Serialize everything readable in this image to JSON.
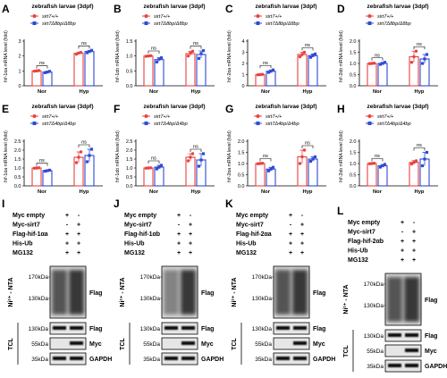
{
  "colors": {
    "red": "#e8423f",
    "blue": "#2f49d6",
    "black": "#000000"
  },
  "chart_data": [
    {
      "type": "bar",
      "panel": "A",
      "title": "zebrafish larvae (3dpf)",
      "ylabel": "hif-1αa mRNA level (fold)",
      "ylim": [
        0,
        3
      ],
      "yticks": [
        0,
        1,
        2,
        3
      ],
      "categories": [
        "Nor",
        "Hyp"
      ],
      "legend": [
        "sirt7+/+",
        "sirt7Δ8bp/Δ8bp"
      ],
      "series": [
        {
          "name": "sirt7+/+",
          "values": [
            1.0,
            2.18
          ],
          "errors": [
            0.04,
            0.06
          ],
          "points": [
            [
              0.98,
              1.0,
              1.02
            ],
            [
              2.12,
              2.2,
              2.24
            ]
          ]
        },
        {
          "name": "sirt7Δ8bp/Δ8bp",
          "values": [
            0.92,
            2.3
          ],
          "errors": [
            0.05,
            0.08
          ],
          "points": [
            [
              0.88,
              0.92,
              0.97
            ],
            [
              2.22,
              2.3,
              2.38
            ]
          ]
        }
      ],
      "annotations": [
        "ns",
        "ns"
      ]
    },
    {
      "type": "bar",
      "panel": "B",
      "title": "zebrafish larvae (3dpf)",
      "ylabel": "hif-1αb mRNA level (fold)",
      "ylim": [
        0,
        1.5
      ],
      "yticks": [
        0,
        0.5,
        1.0,
        1.5
      ],
      "categories": [
        "Nor",
        "Hyp"
      ],
      "legend": [
        "sirt7+/+",
        "sirt7Δ8bp/Δ8bp"
      ],
      "series": [
        {
          "name": "sirt7+/+",
          "values": [
            1.0,
            1.08
          ],
          "errors": [
            0.02,
            0.08
          ],
          "points": [
            [
              0.99,
              1.0,
              1.01
            ],
            [
              1.0,
              1.1,
              1.16
            ]
          ]
        },
        {
          "name": "sirt7Δ8bp/Δ8bp",
          "values": [
            0.88,
            1.05
          ],
          "errors": [
            0.06,
            0.12
          ],
          "points": [
            [
              0.8,
              0.9,
              0.94
            ],
            [
              0.92,
              1.08,
              1.18
            ]
          ]
        }
      ],
      "annotations": [
        "ns",
        "ns"
      ]
    },
    {
      "type": "bar",
      "panel": "C",
      "title": "zebrafish larvae (3dpf)",
      "ylabel": "hif-2αa mRNA level (fold)",
      "ylim": [
        0,
        4
      ],
      "yticks": [
        0,
        1,
        2,
        3,
        4
      ],
      "categories": [
        "Nor",
        "Hyp"
      ],
      "legend": [
        "sirt7+/+",
        "sirt7Δ8bp/Δ8bp"
      ],
      "series": [
        {
          "name": "sirt7+/+",
          "values": [
            1.0,
            2.8
          ],
          "errors": [
            0.03,
            0.2
          ],
          "points": [
            [
              0.98,
              1.0,
              1.02
            ],
            [
              2.6,
              2.8,
              3.0
            ]
          ]
        },
        {
          "name": "sirt7Δ8bp/Δ8bp",
          "values": [
            1.3,
            2.7
          ],
          "errors": [
            0.12,
            0.15
          ],
          "points": [
            [
              1.2,
              1.3,
              1.42
            ],
            [
              2.55,
              2.7,
              2.85
            ]
          ]
        }
      ],
      "annotations": [
        "ns",
        "ns"
      ]
    },
    {
      "type": "bar",
      "panel": "D",
      "title": "zebrafish larvae (3dpf)",
      "ylabel": "hif-2αb mRNA level (fold)",
      "ylim": [
        0,
        2.0
      ],
      "yticks": [
        0,
        0.5,
        1.0,
        1.5,
        2.0
      ],
      "categories": [
        "Nor",
        "Hyp"
      ],
      "legend": [
        "sirt7+/+",
        "sirt7Δ8bp/Δ8bp"
      ],
      "series": [
        {
          "name": "sirt7+/+",
          "values": [
            1.0,
            1.3
          ],
          "errors": [
            0.02,
            0.25
          ],
          "points": [
            [
              0.99,
              1.0,
              1.01
            ],
            [
              1.05,
              1.3,
              1.55
            ]
          ]
        },
        {
          "name": "sirt7Δ8bp/Δ8bp",
          "values": [
            1.0,
            1.2
          ],
          "errors": [
            0.05,
            0.2
          ],
          "points": [
            [
              0.96,
              1.0,
              1.05
            ],
            [
              1.0,
              1.2,
              1.4
            ]
          ]
        }
      ],
      "annotations": [
        "ns",
        "ns"
      ]
    },
    {
      "type": "bar",
      "panel": "E",
      "title": "zebrafish larvae (3dpf)",
      "ylabel": "hif-1αa mRNA level (fold)",
      "ylim": [
        0,
        2.5
      ],
      "yticks": [
        0,
        0.5,
        1.0,
        1.5,
        2.0,
        2.5
      ],
      "categories": [
        "Nor",
        "Hyp"
      ],
      "legend": [
        "sirt7+/+",
        "sirt7Δ4bp/Δ4bp"
      ],
      "series": [
        {
          "name": "sirt7+/+",
          "values": [
            1.0,
            1.6
          ],
          "errors": [
            0.02,
            0.3
          ],
          "points": [
            [
              0.99,
              1.0,
              1.01
            ],
            [
              1.3,
              1.6,
              1.9
            ]
          ]
        },
        {
          "name": "sirt7Δ4bp/Δ4bp",
          "values": [
            0.85,
            1.7
          ],
          "errors": [
            0.04,
            0.35
          ],
          "points": [
            [
              0.82,
              0.85,
              0.88
            ],
            [
              1.35,
              1.7,
              2.05
            ]
          ]
        }
      ],
      "annotations": [
        "ns",
        "ns"
      ]
    },
    {
      "type": "bar",
      "panel": "F",
      "title": "zebrafish larvae (3dpf)",
      "ylabel": "hif-1αb mRNA level (fold)",
      "ylim": [
        0,
        2.5
      ],
      "yticks": [
        0,
        0.5,
        1.0,
        1.5,
        2.0,
        2.5
      ],
      "categories": [
        "Nor",
        "Hyp"
      ],
      "legend": [
        "sirt7+/+",
        "sirt7Δ4bp/Δ4bp"
      ],
      "series": [
        {
          "name": "sirt7+/+",
          "values": [
            1.0,
            1.6
          ],
          "errors": [
            0.02,
            0.2
          ],
          "points": [
            [
              0.99,
              1.0,
              1.01
            ],
            [
              1.4,
              1.6,
              1.8
            ]
          ]
        },
        {
          "name": "sirt7Δ4bp/Δ4bp",
          "values": [
            1.05,
            1.45
          ],
          "errors": [
            0.1,
            0.35
          ],
          "points": [
            [
              0.95,
              1.05,
              1.15
            ],
            [
              1.1,
              1.45,
              1.8
            ]
          ]
        }
      ],
      "annotations": [
        "ns",
        "ns"
      ]
    },
    {
      "type": "bar",
      "panel": "G",
      "title": "zebrafish larvae (3dpf)",
      "ylabel": "hif-2αa mRNA level (fold)",
      "ylim": [
        0,
        2.0
      ],
      "yticks": [
        0,
        0.5,
        1.0,
        1.5,
        2.0
      ],
      "categories": [
        "Nor",
        "Hyp"
      ],
      "legend": [
        "sirt7+/+",
        "sirt7Δ4bp/Δ4bp"
      ],
      "series": [
        {
          "name": "sirt7+/+",
          "values": [
            1.0,
            1.3
          ],
          "errors": [
            0.02,
            0.3
          ],
          "points": [
            [
              0.99,
              1.0,
              1.01
            ],
            [
              1.0,
              1.3,
              1.6
            ]
          ]
        },
        {
          "name": "sirt7Δ4bp/Δ4bp",
          "values": [
            0.75,
            1.2
          ],
          "errors": [
            0.08,
            0.1
          ],
          "points": [
            [
              0.67,
              0.75,
              0.83
            ],
            [
              1.1,
              1.2,
              1.3
            ]
          ]
        }
      ],
      "annotations": [
        "ns",
        "ns"
      ]
    },
    {
      "type": "bar",
      "panel": "H",
      "title": "zebrafish larvae (3dpf)",
      "ylabel": "hif-2αb mRNA level (fold)",
      "ylim": [
        0,
        2.0
      ],
      "yticks": [
        0,
        0.5,
        1.0,
        1.5,
        2.0
      ],
      "categories": [
        "Nor",
        "Hyp"
      ],
      "legend": [
        "sirt7+/+",
        "sirt7Δ4bp/Δ4bp"
      ],
      "series": [
        {
          "name": "sirt7+/+",
          "values": [
            1.0,
            1.05
          ],
          "errors": [
            0.02,
            0.08
          ],
          "points": [
            [
              0.99,
              1.0,
              1.01
            ],
            [
              0.98,
              1.05,
              1.12
            ]
          ]
        },
        {
          "name": "sirt7Δ4bp/Δ4bp",
          "values": [
            0.9,
            1.2
          ],
          "errors": [
            0.06,
            0.3
          ],
          "points": [
            [
              0.84,
              0.9,
              0.96
            ],
            [
              0.9,
              1.2,
              1.5
            ]
          ]
        }
      ],
      "annotations": [
        "ns",
        "ns"
      ]
    }
  ],
  "blots": [
    {
      "panel": "I",
      "conditions": [
        {
          "label": "Myc empty",
          "signs": [
            "+",
            "-"
          ]
        },
        {
          "label": "Myc-sirt7",
          "signs": [
            "-",
            "+"
          ]
        },
        {
          "label": "Flag-hif-1αa",
          "signs": [
            "+",
            "+"
          ]
        },
        {
          "label": "His-Ub",
          "signs": [
            "+",
            "+"
          ]
        },
        {
          "label": "MG132",
          "signs": [
            "+",
            "+"
          ]
        }
      ],
      "ni_label": "Ni²⁺ - NTA",
      "ni_markers": [
        "170kDa",
        "130kDa"
      ],
      "ni_band": "Flag",
      "tcl_label": "TCL",
      "tcl_rows": [
        {
          "marker": "130kDa",
          "band": "Flag"
        },
        {
          "marker": "55kDa",
          "band": "Myc"
        },
        {
          "marker": "35kDa",
          "band": "GAPDH"
        }
      ]
    },
    {
      "panel": "J",
      "conditions": [
        {
          "label": "Myc empty",
          "signs": [
            "+",
            "-"
          ]
        },
        {
          "label": "Myc-sirt7",
          "signs": [
            "-",
            "+"
          ]
        },
        {
          "label": "Flag-hif-1αb",
          "signs": [
            "+",
            "+"
          ]
        },
        {
          "label": "His-Ub",
          "signs": [
            "+",
            "+"
          ]
        },
        {
          "label": "MG132",
          "signs": [
            "+",
            "+"
          ]
        }
      ],
      "ni_label": "Ni²⁺ - NTA",
      "ni_markers": [
        "170kDa",
        "130kDa"
      ],
      "ni_band": "Flag",
      "tcl_label": "TCL",
      "tcl_rows": [
        {
          "marker": "130kDa",
          "band": "Flag"
        },
        {
          "marker": "55kDa",
          "band": "Myc"
        },
        {
          "marker": "35kDa",
          "band": "GAPDH"
        }
      ]
    },
    {
      "panel": "K",
      "conditions": [
        {
          "label": "Myc empty",
          "signs": [
            "+",
            "-"
          ]
        },
        {
          "label": "Myc-sirt7",
          "signs": [
            "-",
            "+"
          ]
        },
        {
          "label": "Flag-hif-2αa",
          "signs": [
            "+",
            "+"
          ]
        },
        {
          "label": "His-Ub",
          "signs": [
            "+",
            "+"
          ]
        },
        {
          "label": "MG132",
          "signs": [
            "+",
            "+"
          ]
        }
      ],
      "ni_label": "Ni²⁺ - NTA",
      "ni_markers": [
        "170kDa",
        "130kDa"
      ],
      "ni_band": "Flag",
      "tcl_label": "TCL",
      "tcl_rows": [
        {
          "marker": "130kDa",
          "band": "Flag"
        },
        {
          "marker": "55kDa",
          "band": "Myc"
        },
        {
          "marker": "35kDa",
          "band": "GAPDH"
        }
      ]
    },
    {
      "panel": "L",
      "conditions": [
        {
          "label": "Myc empty",
          "signs": [
            "+",
            "-"
          ]
        },
        {
          "label": "Myc-sirt7",
          "signs": [
            "-",
            "+"
          ]
        },
        {
          "label": "Flag-hif-2αb",
          "signs": [
            "+",
            "+"
          ]
        },
        {
          "label": "His-Ub",
          "signs": [
            "+",
            "+"
          ]
        },
        {
          "label": "MG132",
          "signs": [
            "+",
            "+"
          ]
        }
      ],
      "ni_label": "Ni²⁺ - NTA",
      "ni_markers": [
        "170kDa",
        "130kDa"
      ],
      "ni_band": "Flag",
      "tcl_label": "TCL",
      "tcl_rows": [
        {
          "marker": "130kDa",
          "band": "Flag"
        },
        {
          "marker": "55kDa",
          "band": "Myc"
        },
        {
          "marker": "35kDa",
          "band": "GAPDH"
        }
      ]
    }
  ]
}
